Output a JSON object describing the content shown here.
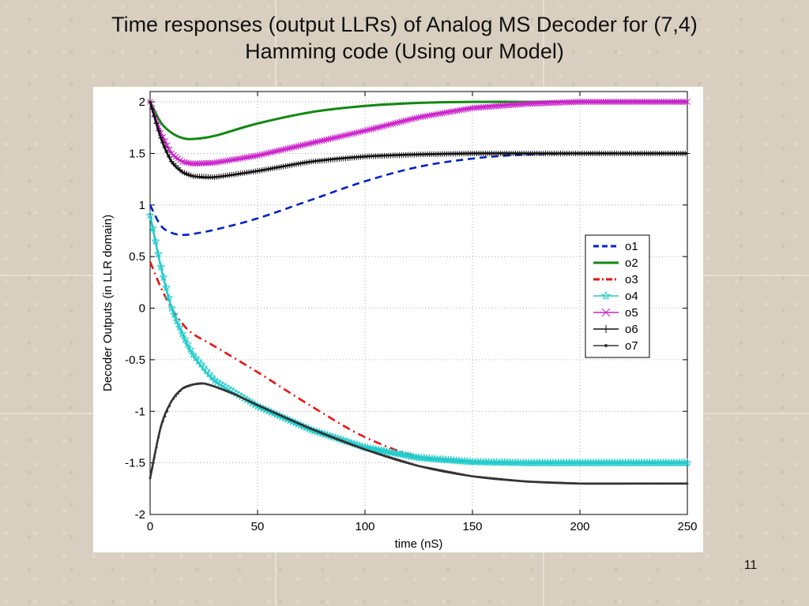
{
  "slide": {
    "title_line1": "Time responses (output LLRs) of Analog MS Decoder for (7,4)",
    "title_line2": "Hamming code (Using our Model)",
    "page_number": "11"
  },
  "chart_data": {
    "type": "line",
    "title": "",
    "xlabel": "time (nS)",
    "ylabel": "Decoder Outputs (in LLR domain)",
    "xlim": [
      0,
      250
    ],
    "ylim": [
      -2,
      2.1
    ],
    "xticks": [
      0,
      50,
      100,
      150,
      200,
      250
    ],
    "yticks": [
      2,
      1.5,
      1,
      0.5,
      0,
      -0.5,
      -1,
      -1.5,
      -2
    ],
    "grid": true,
    "legend_position": "right",
    "series": [
      {
        "name": "o1",
        "color": "#0022cc",
        "style": "dashed",
        "marker": "none",
        "x": [
          0,
          5,
          10,
          15,
          20,
          30,
          50,
          75,
          100,
          125,
          150,
          175,
          200,
          225,
          250
        ],
        "y": [
          1.0,
          0.8,
          0.73,
          0.71,
          0.72,
          0.76,
          0.87,
          1.05,
          1.23,
          1.37,
          1.45,
          1.49,
          1.5,
          1.5,
          1.5
        ]
      },
      {
        "name": "o2",
        "color": "#118811",
        "style": "solid",
        "marker": "none",
        "x": [
          0,
          5,
          10,
          15,
          20,
          30,
          50,
          75,
          100,
          125,
          150,
          175,
          200,
          225,
          250
        ],
        "y": [
          2.0,
          1.8,
          1.7,
          1.65,
          1.64,
          1.67,
          1.79,
          1.9,
          1.96,
          1.99,
          2.0,
          2.0,
          2.0,
          2.0,
          2.0
        ]
      },
      {
        "name": "o3",
        "color": "#ee1111",
        "style": "dashdot",
        "marker": "none",
        "x": [
          0,
          5,
          10,
          15,
          20,
          30,
          50,
          75,
          100,
          125,
          150,
          175,
          200,
          225,
          250
        ],
        "y": [
          0.45,
          0.2,
          0.0,
          -0.15,
          -0.25,
          -0.37,
          -0.62,
          -0.95,
          -1.25,
          -1.44,
          -1.49,
          -1.5,
          -1.5,
          -1.5,
          -1.5
        ]
      },
      {
        "name": "o4",
        "color": "#22cccc",
        "style": "solid",
        "marker": "star",
        "x": [
          0,
          5,
          10,
          15,
          20,
          30,
          50,
          75,
          100,
          125,
          150,
          175,
          200,
          225,
          250
        ],
        "y": [
          0.9,
          0.4,
          0.0,
          -0.25,
          -0.45,
          -0.7,
          -0.95,
          -1.18,
          -1.35,
          -1.45,
          -1.49,
          -1.5,
          -1.5,
          -1.5,
          -1.5
        ]
      },
      {
        "name": "o5",
        "color": "#cc22cc",
        "style": "solid",
        "marker": "x",
        "x": [
          0,
          5,
          10,
          15,
          20,
          30,
          50,
          75,
          100,
          125,
          150,
          175,
          200,
          225,
          250
        ],
        "y": [
          2.0,
          1.7,
          1.5,
          1.42,
          1.4,
          1.41,
          1.48,
          1.6,
          1.72,
          1.85,
          1.94,
          1.98,
          2.0,
          2.0,
          2.0
        ]
      },
      {
        "name": "o6",
        "color": "#111111",
        "style": "solid",
        "marker": "plus",
        "x": [
          0,
          5,
          10,
          15,
          20,
          30,
          50,
          75,
          100,
          125,
          150,
          175,
          200,
          225,
          250
        ],
        "y": [
          2.0,
          1.65,
          1.42,
          1.32,
          1.28,
          1.27,
          1.33,
          1.42,
          1.47,
          1.49,
          1.5,
          1.5,
          1.5,
          1.5,
          1.5
        ]
      },
      {
        "name": "o7",
        "color": "#333333",
        "style": "solid",
        "marker": "dot",
        "x": [
          0,
          5,
          10,
          15,
          20,
          25,
          30,
          40,
          50,
          75,
          100,
          125,
          150,
          175,
          200,
          225,
          250
        ],
        "y": [
          -1.65,
          -1.15,
          -0.9,
          -0.78,
          -0.74,
          -0.73,
          -0.76,
          -0.84,
          -0.94,
          -1.17,
          -1.37,
          -1.53,
          -1.63,
          -1.68,
          -1.7,
          -1.7,
          -1.7
        ]
      }
    ]
  }
}
